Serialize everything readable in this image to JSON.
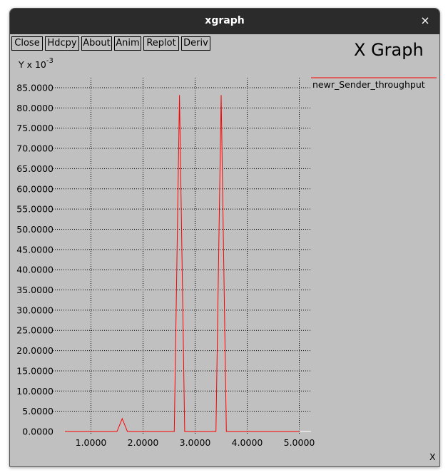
{
  "window": {
    "title": "xgraph",
    "close_symbol": "×"
  },
  "toolbar": {
    "buttons": [
      "Close",
      "Hdcpy",
      "About",
      "Anim",
      "Replot",
      "Deriv"
    ]
  },
  "brand": "X Graph",
  "chart_data": {
    "type": "line",
    "title": "",
    "ylabel_base": "Y x 10",
    "ylabel_exp": "-3",
    "xlabel": "X",
    "xlim": [
      0.3,
      5.2
    ],
    "ylim": [
      0,
      85
    ],
    "x_ticks": [
      "1.0000",
      "2.0000",
      "3.0000",
      "4.0000",
      "5.0000"
    ],
    "y_ticks": [
      "0.0000",
      "5.0000",
      "10.0000",
      "15.0000",
      "20.0000",
      "25.0000",
      "30.0000",
      "35.0000",
      "40.0000",
      "45.0000",
      "50.0000",
      "55.0000",
      "60.0000",
      "65.0000",
      "70.0000",
      "75.0000",
      "80.0000",
      "85.0000"
    ],
    "grid": true,
    "legend_position": "right",
    "series": [
      {
        "name": "newr_Sender_throughput",
        "color": "#ff0000",
        "x": [
          0.5,
          1.5,
          1.6,
          1.7,
          2.6,
          2.7,
          2.8,
          3.4,
          3.5,
          3.6,
          5.0
        ],
        "y": [
          0,
          0,
          3.2,
          0,
          0,
          83.2,
          0,
          0,
          83.2,
          0,
          0
        ]
      }
    ]
  }
}
